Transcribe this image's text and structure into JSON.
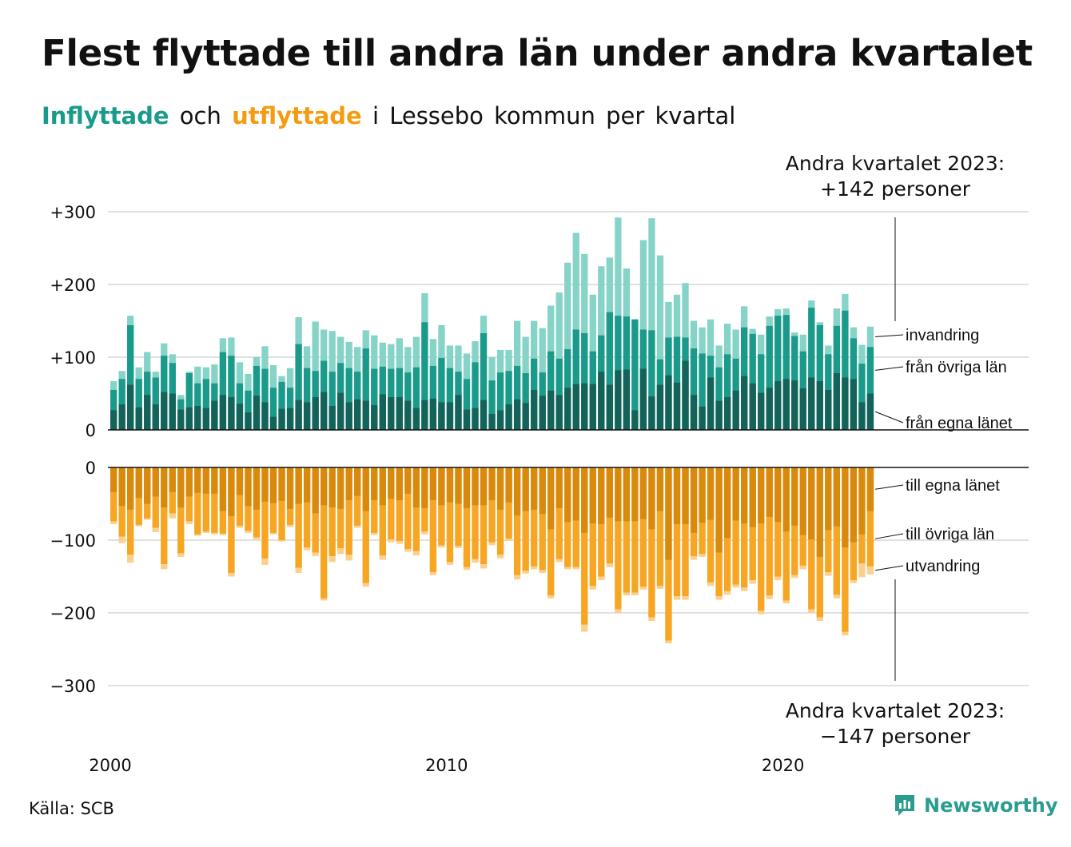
{
  "header": {
    "title": "Flest flyttade till andra län under andra kvartalet",
    "subtitle_in": "Inflyttade",
    "subtitle_and": "och",
    "subtitle_out": "utflyttade",
    "subtitle_rest": "i Lessebo kommun per kvartal"
  },
  "footer": {
    "source": "Källa: SCB",
    "brand": "Newsworthy"
  },
  "colors": {
    "in_own_county": "#14635a",
    "in_other_counties": "#1a9a8a",
    "in_immigration": "#86d3c8",
    "out_own_county": "#d98a0c",
    "out_other_counties": "#f7a623",
    "out_emigration": "#fbd08e",
    "grid": "#e0e0e0"
  },
  "chart_data": {
    "type": "bar",
    "subtype": "diverging stacked bar, quarterly",
    "x_ticks": [
      "2000",
      "2010",
      "2020"
    ],
    "y_ticks_top": [
      "+300",
      "+200",
      "+100",
      "0"
    ],
    "y_ticks_bottom": [
      "0",
      "−100",
      "−200",
      "−300"
    ],
    "ylim_top": [
      0,
      300
    ],
    "ylim_bottom": [
      -300,
      0
    ],
    "series_in": [
      {
        "name": "från egna länet",
        "key": "own"
      },
      {
        "name": "från övriga län",
        "key": "other"
      },
      {
        "name": "invandring",
        "key": "imm"
      }
    ],
    "series_out": [
      {
        "name": "till egna länet",
        "key": "own"
      },
      {
        "name": "till övriga län",
        "key": "other"
      },
      {
        "name": "utvandring",
        "key": "emi"
      }
    ],
    "in_total": [
      67,
      81,
      157,
      86,
      107,
      80,
      119,
      104,
      48,
      80,
      87,
      86,
      90,
      126,
      127,
      93,
      77,
      100,
      115,
      89,
      74,
      85,
      155,
      115,
      149,
      138,
      136,
      128,
      121,
      114,
      137,
      130,
      120,
      118,
      126,
      114,
      128,
      188,
      125,
      144,
      116,
      116,
      105,
      122,
      157,
      100,
      110,
      110,
      150,
      128,
      150,
      140,
      171,
      189,
      230,
      271,
      242,
      186,
      225,
      237,
      292,
      222,
      152,
      261,
      291,
      240,
      176,
      186,
      202,
      150,
      141,
      152,
      116,
      146,
      138,
      170,
      139,
      131,
      156,
      166,
      167,
      134,
      131,
      178,
      148,
      116,
      167,
      187,
      141,
      117,
      142
    ],
    "in_own_county": [
      27,
      35,
      62,
      31,
      48,
      35,
      52,
      50,
      28,
      31,
      33,
      30,
      40,
      48,
      45,
      36,
      24,
      47,
      38,
      18,
      29,
      30,
      41,
      38,
      45,
      52,
      33,
      51,
      38,
      42,
      40,
      34,
      49,
      45,
      45,
      40,
      30,
      41,
      43,
      38,
      38,
      48,
      28,
      30,
      41,
      22,
      27,
      35,
      42,
      37,
      55,
      47,
      54,
      48,
      58,
      63,
      64,
      63,
      80,
      62,
      82,
      83,
      27,
      84,
      46,
      62,
      75,
      65,
      95,
      48,
      32,
      72,
      40,
      45,
      54,
      74,
      64,
      51,
      58,
      67,
      70,
      68,
      57,
      72,
      67,
      55,
      78,
      72,
      70,
      38,
      50
    ],
    "in_other_counties": [
      55,
      70,
      144,
      70,
      80,
      72,
      102,
      92,
      42,
      78,
      64,
      70,
      64,
      107,
      102,
      64,
      54,
      88,
      84,
      58,
      66,
      58,
      118,
      85,
      81,
      95,
      80,
      92,
      85,
      80,
      112,
      84,
      87,
      84,
      85,
      79,
      86,
      148,
      88,
      99,
      85,
      80,
      70,
      93,
      133,
      68,
      79,
      81,
      88,
      78,
      98,
      79,
      108,
      98,
      111,
      138,
      133,
      108,
      130,
      162,
      157,
      156,
      152,
      138,
      137,
      97,
      127,
      128,
      127,
      112,
      105,
      102,
      86,
      104,
      98,
      141,
      132,
      104,
      143,
      157,
      158,
      129,
      108,
      168,
      144,
      104,
      143,
      164,
      126,
      91,
      114
    ],
    "out_total": [
      -78,
      -104,
      -131,
      -81,
      -72,
      -89,
      -140,
      -70,
      -123,
      -78,
      -94,
      -90,
      -92,
      -93,
      -150,
      -83,
      -90,
      -99,
      -134,
      -92,
      -102,
      -82,
      -145,
      -114,
      -122,
      -183,
      -130,
      -119,
      -128,
      -83,
      -164,
      -93,
      -127,
      -103,
      -105,
      -116,
      -121,
      -92,
      -148,
      -110,
      -134,
      -111,
      -141,
      -131,
      -139,
      -107,
      -125,
      -101,
      -154,
      -146,
      -140,
      -145,
      -180,
      -130,
      -140,
      -140,
      -226,
      -168,
      -155,
      -137,
      -200,
      -176,
      -176,
      -168,
      -211,
      -167,
      -242,
      -182,
      -182,
      -127,
      -123,
      -163,
      -182,
      -175,
      -165,
      -170,
      -160,
      -202,
      -181,
      -155,
      -187,
      -152,
      -140,
      -200,
      -211,
      -149,
      -180,
      -231,
      -159,
      -151,
      -147
    ],
    "out_own_county": [
      -34,
      -53,
      -58,
      -42,
      -50,
      -40,
      -55,
      -34,
      -55,
      -40,
      -35,
      -36,
      -36,
      -60,
      -67,
      -38,
      -53,
      -58,
      -47,
      -49,
      -46,
      -57,
      -50,
      -48,
      -63,
      -52,
      -55,
      -57,
      -45,
      -39,
      -60,
      -45,
      -52,
      -43,
      -45,
      -36,
      -55,
      -56,
      -45,
      -52,
      -48,
      -50,
      -56,
      -52,
      -52,
      -45,
      -58,
      -48,
      -66,
      -60,
      -58,
      -64,
      -85,
      -56,
      -75,
      -73,
      -90,
      -77,
      -78,
      -69,
      -74,
      -74,
      -74,
      -71,
      -85,
      -60,
      -127,
      -78,
      -78,
      -90,
      -76,
      -72,
      -117,
      -97,
      -73,
      -77,
      -82,
      -77,
      -68,
      -75,
      -88,
      -80,
      -93,
      -99,
      -123,
      -86,
      -81,
      -110,
      -103,
      -92,
      -60
    ],
    "out_other_counties": [
      -74,
      -95,
      -120,
      -79,
      -70,
      -83,
      -133,
      -63,
      -118,
      -74,
      -92,
      -88,
      -90,
      -91,
      -145,
      -80,
      -87,
      -96,
      -125,
      -90,
      -100,
      -79,
      -138,
      -110,
      -117,
      -180,
      -122,
      -111,
      -120,
      -80,
      -159,
      -90,
      -121,
      -99,
      -101,
      -112,
      -115,
      -88,
      -144,
      -107,
      -130,
      -108,
      -137,
      -126,
      -133,
      -103,
      -120,
      -98,
      -148,
      -142,
      -136,
      -141,
      -176,
      -126,
      -137,
      -137,
      -216,
      -163,
      -150,
      -132,
      -195,
      -172,
      -172,
      -164,
      -206,
      -163,
      -238,
      -177,
      -177,
      -122,
      -119,
      -158,
      -177,
      -170,
      -161,
      -165,
      -155,
      -197,
      -176,
      -150,
      -183,
      -148,
      -135,
      -195,
      -206,
      -144,
      -175,
      -226,
      -155,
      -132,
      -136
    ],
    "annotation_top_line1": "Andra kvartalet 2023:",
    "annotation_top_line2": "+142 personer",
    "annotation_bottom_line1": "Andra kvartalet 2023:",
    "annotation_bottom_line2": "−147 personer"
  }
}
